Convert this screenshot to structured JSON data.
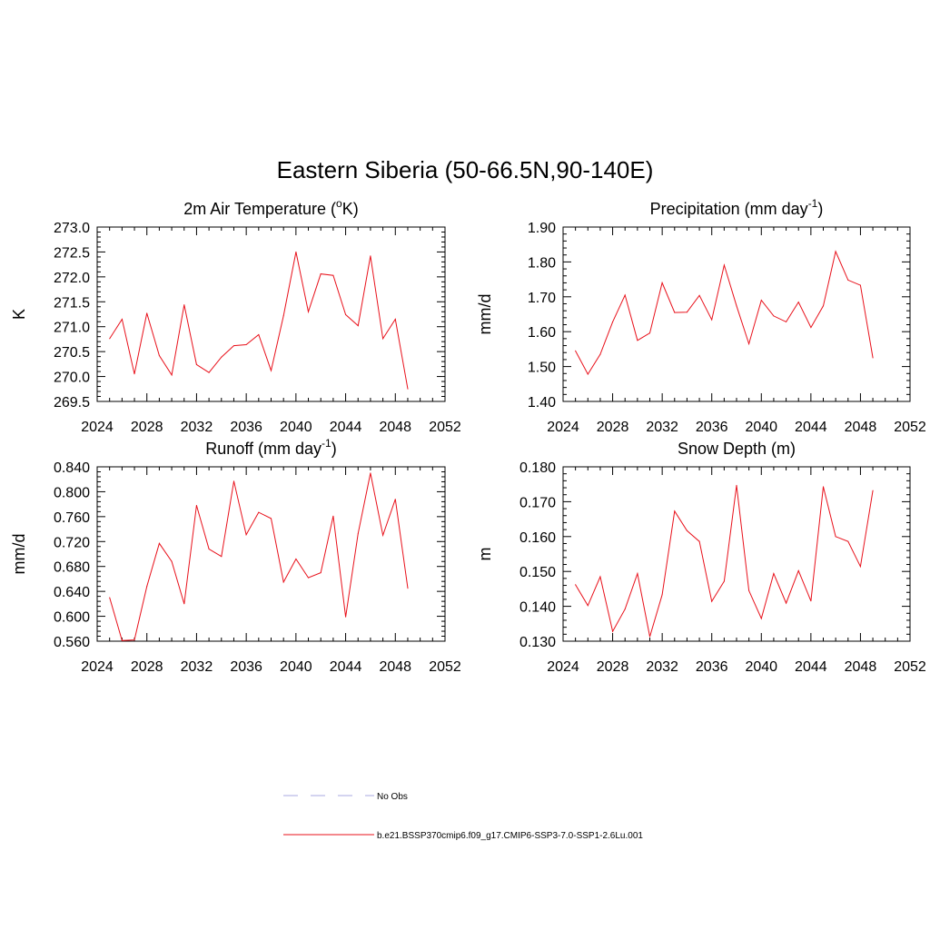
{
  "title": "Eastern Siberia (50-66.5N,90-140E)",
  "colors": {
    "series": "#e8101a",
    "obs": "#a8a8e0"
  },
  "legend": {
    "entries": [
      {
        "label": "No Obs",
        "style": "dashed",
        "color": "#a8a8e0"
      },
      {
        "label": "b.e21.BSSP370cmip6.f09_g17.CMIP6-SSP3-7.0-SSP1-2.6Lu.001",
        "style": "solid",
        "color": "#e8101a"
      }
    ]
  },
  "chart_data": [
    {
      "type": "line",
      "title_main": "2m Air Temperature (",
      "title_sup_pre": "o",
      "title_after_sup": "K)",
      "ylabel": "K",
      "xlim": [
        2024,
        2052
      ],
      "xticks": [
        2024,
        2028,
        2032,
        2036,
        2040,
        2044,
        2048,
        2052
      ],
      "ylim": [
        269.5,
        273.0
      ],
      "yticks": [
        269.5,
        270.0,
        270.5,
        271.0,
        271.5,
        272.0,
        272.5,
        273.0
      ],
      "ydecimals": 1,
      "x": [
        2025,
        2026,
        2027,
        2028,
        2029,
        2030,
        2031,
        2032,
        2033,
        2034,
        2035,
        2036,
        2037,
        2038,
        2039,
        2040,
        2041,
        2042,
        2043,
        2044,
        2045,
        2046,
        2047,
        2048,
        2049
      ],
      "values": [
        270.76,
        271.15,
        270.05,
        271.27,
        270.42,
        270.03,
        271.44,
        270.24,
        270.08,
        270.39,
        270.62,
        270.64,
        270.84,
        270.12,
        271.22,
        272.5,
        271.3,
        272.06,
        272.03,
        271.24,
        271.02,
        272.42,
        270.76,
        271.15,
        269.75
      ]
    },
    {
      "type": "line",
      "title_main": "Precipitation (mm day",
      "title_sup_post": "-1",
      "title_after_sup": ")",
      "ylabel": "mm/d",
      "xlim": [
        2024,
        2052
      ],
      "xticks": [
        2024,
        2028,
        2032,
        2036,
        2040,
        2044,
        2048,
        2052
      ],
      "ylim": [
        1.4,
        1.9
      ],
      "yticks": [
        1.4,
        1.5,
        1.6,
        1.7,
        1.8,
        1.9
      ],
      "ydecimals": 2,
      "x": [
        2025,
        2026,
        2027,
        2028,
        2029,
        2030,
        2031,
        2032,
        2033,
        2034,
        2035,
        2036,
        2037,
        2038,
        2039,
        2040,
        2041,
        2042,
        2043,
        2044,
        2045,
        2046,
        2047,
        2048,
        2049
      ],
      "values": [
        1.545,
        1.478,
        1.535,
        1.628,
        1.705,
        1.575,
        1.596,
        1.74,
        1.655,
        1.656,
        1.704,
        1.634,
        1.791,
        1.674,
        1.565,
        1.69,
        1.645,
        1.628,
        1.685,
        1.612,
        1.674,
        1.83,
        1.748,
        1.733,
        1.525
      ]
    },
    {
      "type": "line",
      "title_main": "Runoff (mm day",
      "title_sup_post": "-1",
      "title_after_sup": ")",
      "ylabel": "mm/d",
      "xlim": [
        2024,
        2052
      ],
      "xticks": [
        2024,
        2028,
        2032,
        2036,
        2040,
        2044,
        2048,
        2052
      ],
      "ylim": [
        0.56,
        0.84
      ],
      "yticks": [
        0.56,
        0.6,
        0.64,
        0.68,
        0.72,
        0.76,
        0.8,
        0.84
      ],
      "ydecimals": 3,
      "x": [
        2025,
        2026,
        2027,
        2028,
        2029,
        2030,
        2031,
        2032,
        2033,
        2034,
        2035,
        2036,
        2037,
        2038,
        2039,
        2040,
        2041,
        2042,
        2043,
        2044,
        2045,
        2046,
        2047,
        2048,
        2049
      ],
      "values": [
        0.63,
        0.561,
        0.562,
        0.648,
        0.717,
        0.688,
        0.62,
        0.778,
        0.708,
        0.696,
        0.817,
        0.731,
        0.767,
        0.757,
        0.655,
        0.692,
        0.662,
        0.67,
        0.761,
        0.599,
        0.733,
        0.83,
        0.73,
        0.788,
        0.645
      ]
    },
    {
      "type": "line",
      "title_main": "Snow Depth (m)",
      "ylabel": "m",
      "xlim": [
        2024,
        2052
      ],
      "xticks": [
        2024,
        2028,
        2032,
        2036,
        2040,
        2044,
        2048,
        2052
      ],
      "ylim": [
        0.13,
        0.18
      ],
      "yticks": [
        0.13,
        0.14,
        0.15,
        0.16,
        0.17,
        0.18
      ],
      "ydecimals": 3,
      "x": [
        2025,
        2026,
        2027,
        2028,
        2029,
        2030,
        2031,
        2032,
        2033,
        2034,
        2035,
        2036,
        2037,
        2038,
        2039,
        2040,
        2041,
        2042,
        2043,
        2044,
        2045,
        2046,
        2047,
        2048,
        2049
      ],
      "values": [
        0.1462,
        0.1402,
        0.1485,
        0.1328,
        0.1392,
        0.1494,
        0.1313,
        0.1433,
        0.1673,
        0.1617,
        0.1586,
        0.1414,
        0.1472,
        0.1747,
        0.1445,
        0.1365,
        0.1494,
        0.1409,
        0.1502,
        0.1415,
        0.1743,
        0.16,
        0.1586,
        0.1514,
        0.1732
      ]
    }
  ]
}
